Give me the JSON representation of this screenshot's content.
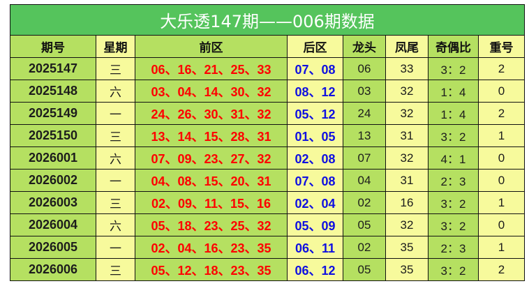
{
  "title": "大乐透147期——006期数据",
  "headers": [
    "期号",
    "星期",
    "前区",
    "后区",
    "龙头",
    "凤尾",
    "奇偶比",
    "重号"
  ],
  "rows": [
    {
      "id": "2025147",
      "day": "三",
      "front": "06、16、21、25、33",
      "back": "07、08",
      "head": "06",
      "tail": "33",
      "ratio": "3：2",
      "repeat": "2"
    },
    {
      "id": "2025148",
      "day": "六",
      "front": "03、04、14、30、32",
      "back": "08、12",
      "head": "03",
      "tail": "32",
      "ratio": "1：4",
      "repeat": "0"
    },
    {
      "id": "2025149",
      "day": "一",
      "front": "24、26、30、31、32",
      "back": "05、12",
      "head": "24",
      "tail": "32",
      "ratio": "1：4",
      "repeat": "2"
    },
    {
      "id": "2025150",
      "day": "三",
      "front": "13、14、15、28、31",
      "back": "01、05",
      "head": "13",
      "tail": "31",
      "ratio": "3：2",
      "repeat": "1"
    },
    {
      "id": "2026001",
      "day": "六",
      "front": "07、09、23、27、32",
      "back": "02、08",
      "head": "07",
      "tail": "32",
      "ratio": "4：1",
      "repeat": "0"
    },
    {
      "id": "2026002",
      "day": "一",
      "front": "04、08、15、20、31",
      "back": "07、08",
      "head": "04",
      "tail": "31",
      "ratio": "2：3",
      "repeat": "0"
    },
    {
      "id": "2026003",
      "day": "三",
      "front": "02、09、11、15、16",
      "back": "02、04",
      "head": "02",
      "tail": "16",
      "ratio": "3：2",
      "repeat": "1"
    },
    {
      "id": "2026004",
      "day": "六",
      "front": "05、18、23、25、32",
      "back": "05、09",
      "head": "05",
      "tail": "32",
      "ratio": "3：2",
      "repeat": "0"
    },
    {
      "id": "2026005",
      "day": "一",
      "front": "02、04、16、23、35",
      "back": "06、11",
      "head": "02",
      "tail": "35",
      "ratio": "2：3",
      "repeat": "1"
    },
    {
      "id": "2026006",
      "day": "三",
      "front": "05、12、18、23、35",
      "back": "06、12",
      "head": "05",
      "tail": "35",
      "ratio": "3：2",
      "repeat": "2"
    }
  ]
}
